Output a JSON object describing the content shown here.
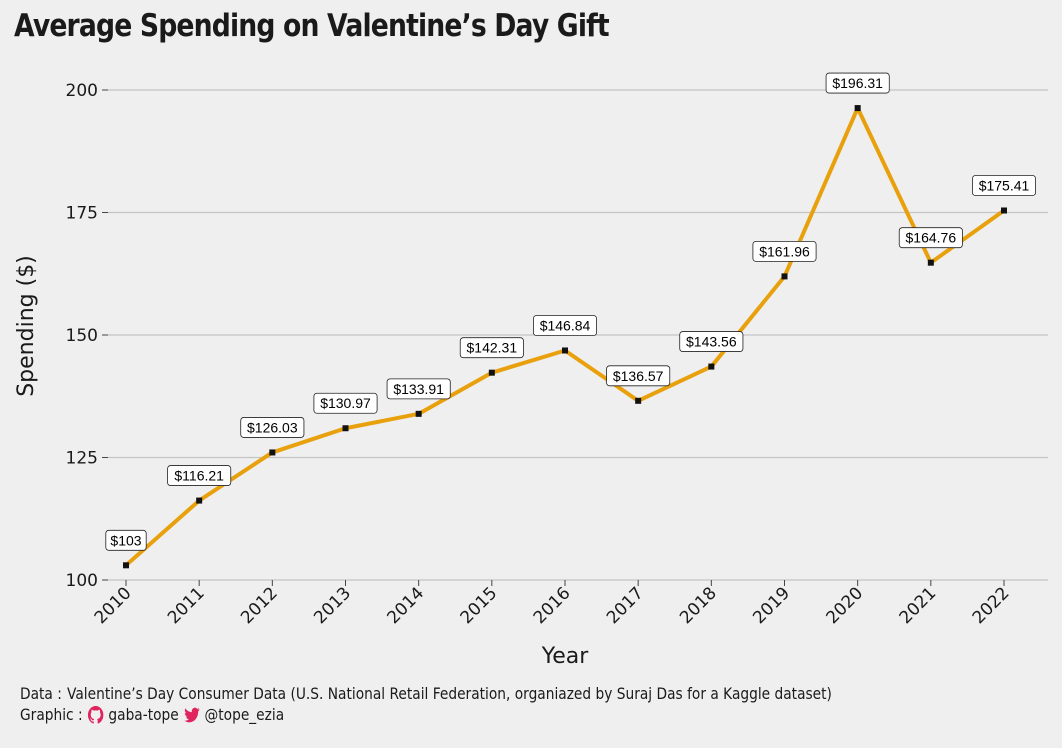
{
  "chart_data": {
    "type": "line",
    "title": "Average Spending on Valentine’s Day Gift",
    "xlabel": "Year",
    "ylabel": "Spending ($)",
    "ylim": [
      100,
      200
    ],
    "yticks": [
      100,
      125,
      150,
      175,
      200
    ],
    "grid": "horizontal",
    "line_color": "#e8a10c",
    "x": [
      "2010",
      "2011",
      "2012",
      "2013",
      "2014",
      "2015",
      "2016",
      "2017",
      "2018",
      "2019",
      "2020",
      "2021",
      "2022"
    ],
    "values": [
      103,
      116.21,
      126.03,
      130.97,
      133.91,
      142.31,
      146.84,
      136.57,
      143.56,
      161.96,
      196.31,
      164.76,
      175.41
    ],
    "labels": [
      "$103",
      "$116.21",
      "$126.03",
      "$130.97",
      "$133.91",
      "$142.31",
      "$146.84",
      "$136.57",
      "$143.56",
      "$161.96",
      "$196.31",
      "$164.76",
      "$175.41"
    ]
  },
  "footer": {
    "data_prefix": "Data :",
    "data_source": "Valentine’s Day Consumer Data (U.S. National Retail Federation, organiazed by Suraj Das for a Kaggle dataset)",
    "graphic_prefix": "Graphic :",
    "github_handle": "gaba-tope",
    "twitter_handle": "@tope_ezia",
    "github_icon": "github-icon",
    "twitter_icon": "twitter-icon",
    "github_color": "#e0245e",
    "twitter_color": "#e0245e"
  }
}
